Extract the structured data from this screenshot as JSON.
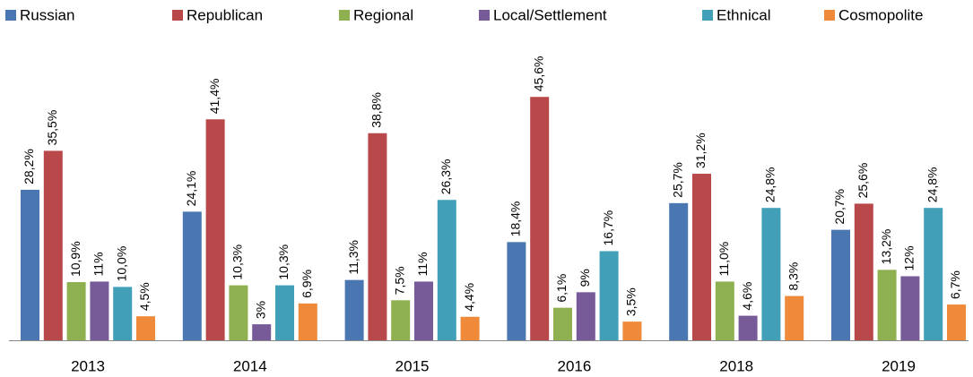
{
  "chart_data": {
    "type": "bar",
    "categories": [
      "2013",
      "2014",
      "2015",
      "2016",
      "2018",
      "2019"
    ],
    "legend": "top",
    "ylim": [
      0,
      50
    ],
    "series": [
      {
        "name": "Russian",
        "color": "#4a76b2",
        "values": [
          28.2,
          24.1,
          11.3,
          18.4,
          25.7,
          20.7
        ],
        "value_labels": [
          "28,2%",
          "24,1%",
          "11,3%",
          "18,4%",
          "25,7%",
          "20,7%"
        ]
      },
      {
        "name": "Republican",
        "color": "#b8484a",
        "values": [
          35.5,
          41.4,
          38.8,
          45.6,
          31.2,
          25.6
        ],
        "value_labels": [
          "35,5%",
          "41,4%",
          "38,8%",
          "45,6%",
          "31,2%",
          "25,6%"
        ]
      },
      {
        "name": "Regional",
        "color": "#8fb050",
        "values": [
          10.9,
          10.3,
          7.5,
          6.1,
          11.0,
          13.2
        ],
        "value_labels": [
          "10,9%",
          "10,3%",
          "7,5%",
          "6,1%",
          "11,0%",
          "13,2%"
        ]
      },
      {
        "name": "Local/Settlement",
        "color": "#775a98",
        "values": [
          11,
          3,
          11,
          9,
          4.6,
          12
        ],
        "value_labels": [
          "11%",
          "3%",
          "11%",
          "9%",
          "4,6%",
          "12%"
        ]
      },
      {
        "name": "Ethnical",
        "color": "#41a0b8",
        "values": [
          10.0,
          10.3,
          26.3,
          16.7,
          24.8,
          24.8
        ],
        "value_labels": [
          "10,0%",
          "10,3%",
          "26,3%",
          "16,7%",
          "24,8%",
          "24,8%"
        ]
      },
      {
        "name": "Cosmopolite",
        "color": "#ee8a3a",
        "values": [
          4.5,
          6.9,
          4.4,
          3.5,
          8.3,
          6.7
        ],
        "value_labels": [
          "4,5%",
          "6,9%",
          "4,4%",
          "3,5%",
          "8,3%",
          "6,7%"
        ]
      }
    ]
  }
}
